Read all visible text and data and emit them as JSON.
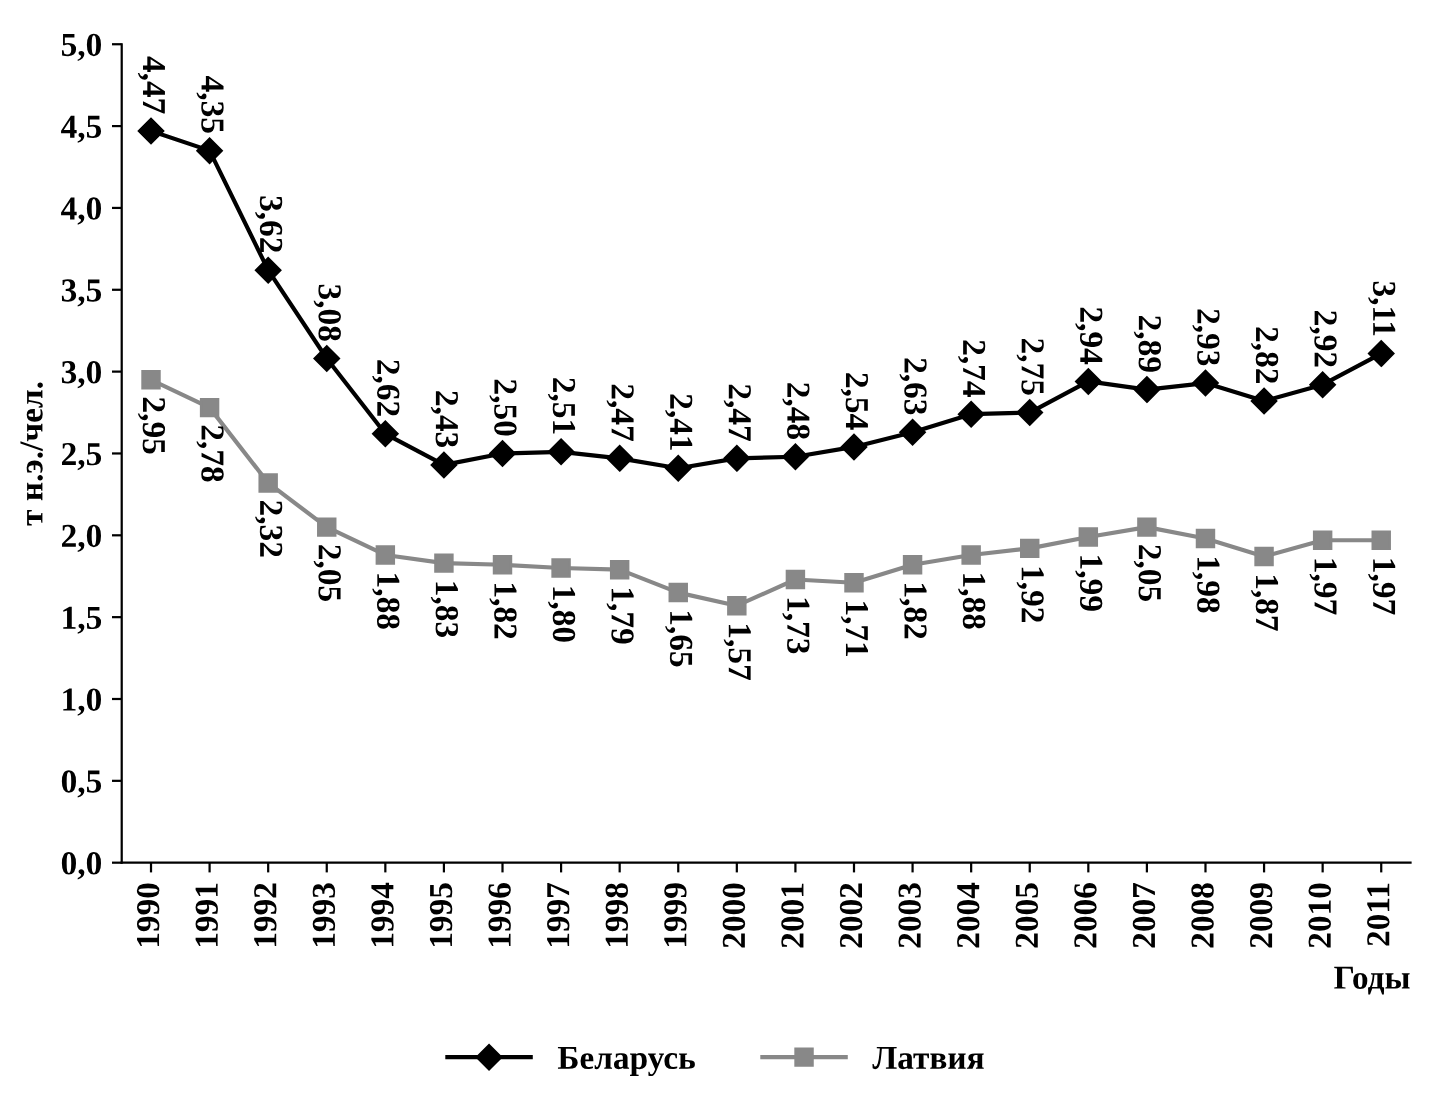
{
  "chart_data": {
    "type": "line",
    "xlabel": "Годы",
    "ylabel": "т н.э./чел.",
    "categories": [
      "1990",
      "1991",
      "1992",
      "1993",
      "1994",
      "1995",
      "1996",
      "1997",
      "1998",
      "1999",
      "2000",
      "2001",
      "2002",
      "2003",
      "2004",
      "2005",
      "2006",
      "2007",
      "2008",
      "2009",
      "2010",
      "2011"
    ],
    "series": [
      {
        "name": "Беларусь",
        "color": "#000000",
        "marker": "diamond",
        "values": [
          4.47,
          4.35,
          3.62,
          3.08,
          2.62,
          2.43,
          2.5,
          2.51,
          2.47,
          2.41,
          2.47,
          2.48,
          2.54,
          2.63,
          2.74,
          2.75,
          2.94,
          2.89,
          2.93,
          2.82,
          2.92,
          3.11
        ],
        "value_labels": [
          "4,47",
          "4,35",
          "3,62",
          "3,08",
          "2,62",
          "2,43",
          "2,50",
          "2,51",
          "2,47",
          "2,41",
          "2,47",
          "2,48",
          "2,54",
          "2,63",
          "2,74",
          "2,75",
          "2,94",
          "2,89",
          "2,93",
          "2,82",
          "2,92",
          "3,11"
        ]
      },
      {
        "name": "Латвия",
        "color": "#888888",
        "marker": "square",
        "values": [
          2.95,
          2.78,
          2.32,
          2.05,
          1.88,
          1.83,
          1.82,
          1.8,
          1.79,
          1.65,
          1.57,
          1.73,
          1.71,
          1.82,
          1.88,
          1.92,
          1.99,
          2.05,
          1.98,
          1.87,
          1.97,
          1.97
        ],
        "value_labels": [
          "2,95",
          "2,78",
          "2,32",
          "2,05",
          "1,88",
          "1,83",
          "1,82",
          "1,80",
          "1,79",
          "1,65",
          "1,57",
          "1,73",
          "1,71",
          "1,82",
          "1,88",
          "1,92",
          "1,99",
          "2,05",
          "1,98",
          "1,87",
          "1,97",
          "1,97"
        ]
      }
    ],
    "ylim": [
      0,
      5
    ],
    "yticks": [
      {
        "value": 0,
        "label": "0,0"
      },
      {
        "value": 0.5,
        "label": "0,5"
      },
      {
        "value": 1,
        "label": "1,0"
      },
      {
        "value": 1.5,
        "label": "1,5"
      },
      {
        "value": 2,
        "label": "2,0"
      },
      {
        "value": 2.5,
        "label": "2,5"
      },
      {
        "value": 3,
        "label": "3,0"
      },
      {
        "value": 3.5,
        "label": "3,5"
      },
      {
        "value": 4,
        "label": "4,0"
      },
      {
        "value": 4.5,
        "label": "4,5"
      },
      {
        "value": 5,
        "label": "5,0"
      }
    ],
    "grid": false,
    "legend": "bottom",
    "line_style": "solid"
  }
}
